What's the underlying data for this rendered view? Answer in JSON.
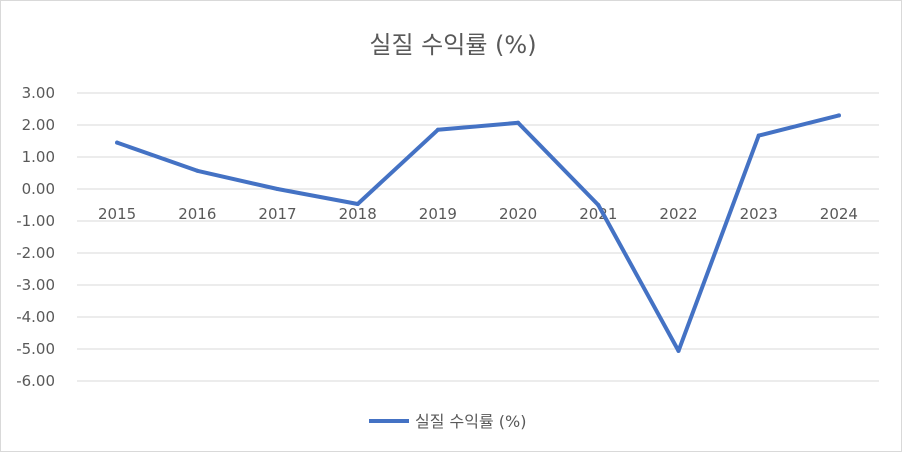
{
  "chart_data": {
    "type": "line",
    "title": "실질 수익률 (%)",
    "categories": [
      "2015",
      "2016",
      "2017",
      "2018",
      "2019",
      "2020",
      "2021",
      "2022",
      "2023",
      "2024"
    ],
    "series": [
      {
        "name": "실질 수익률 (%)",
        "values": [
          1.45,
          0.57,
          0.0,
          -0.47,
          1.85,
          2.07,
          -0.5,
          -5.06,
          1.67,
          2.3
        ],
        "color": "#4472C4"
      }
    ],
    "yticks": [
      "3.00",
      "2.00",
      "1.00",
      "0.00",
      "-1.00",
      "-2.00",
      "-3.00",
      "-4.00",
      "-5.00",
      "-6.00"
    ],
    "ylim": [
      -6,
      3
    ],
    "grid": true,
    "legend_position": "bottom",
    "xlabel": "",
    "ylabel": ""
  }
}
